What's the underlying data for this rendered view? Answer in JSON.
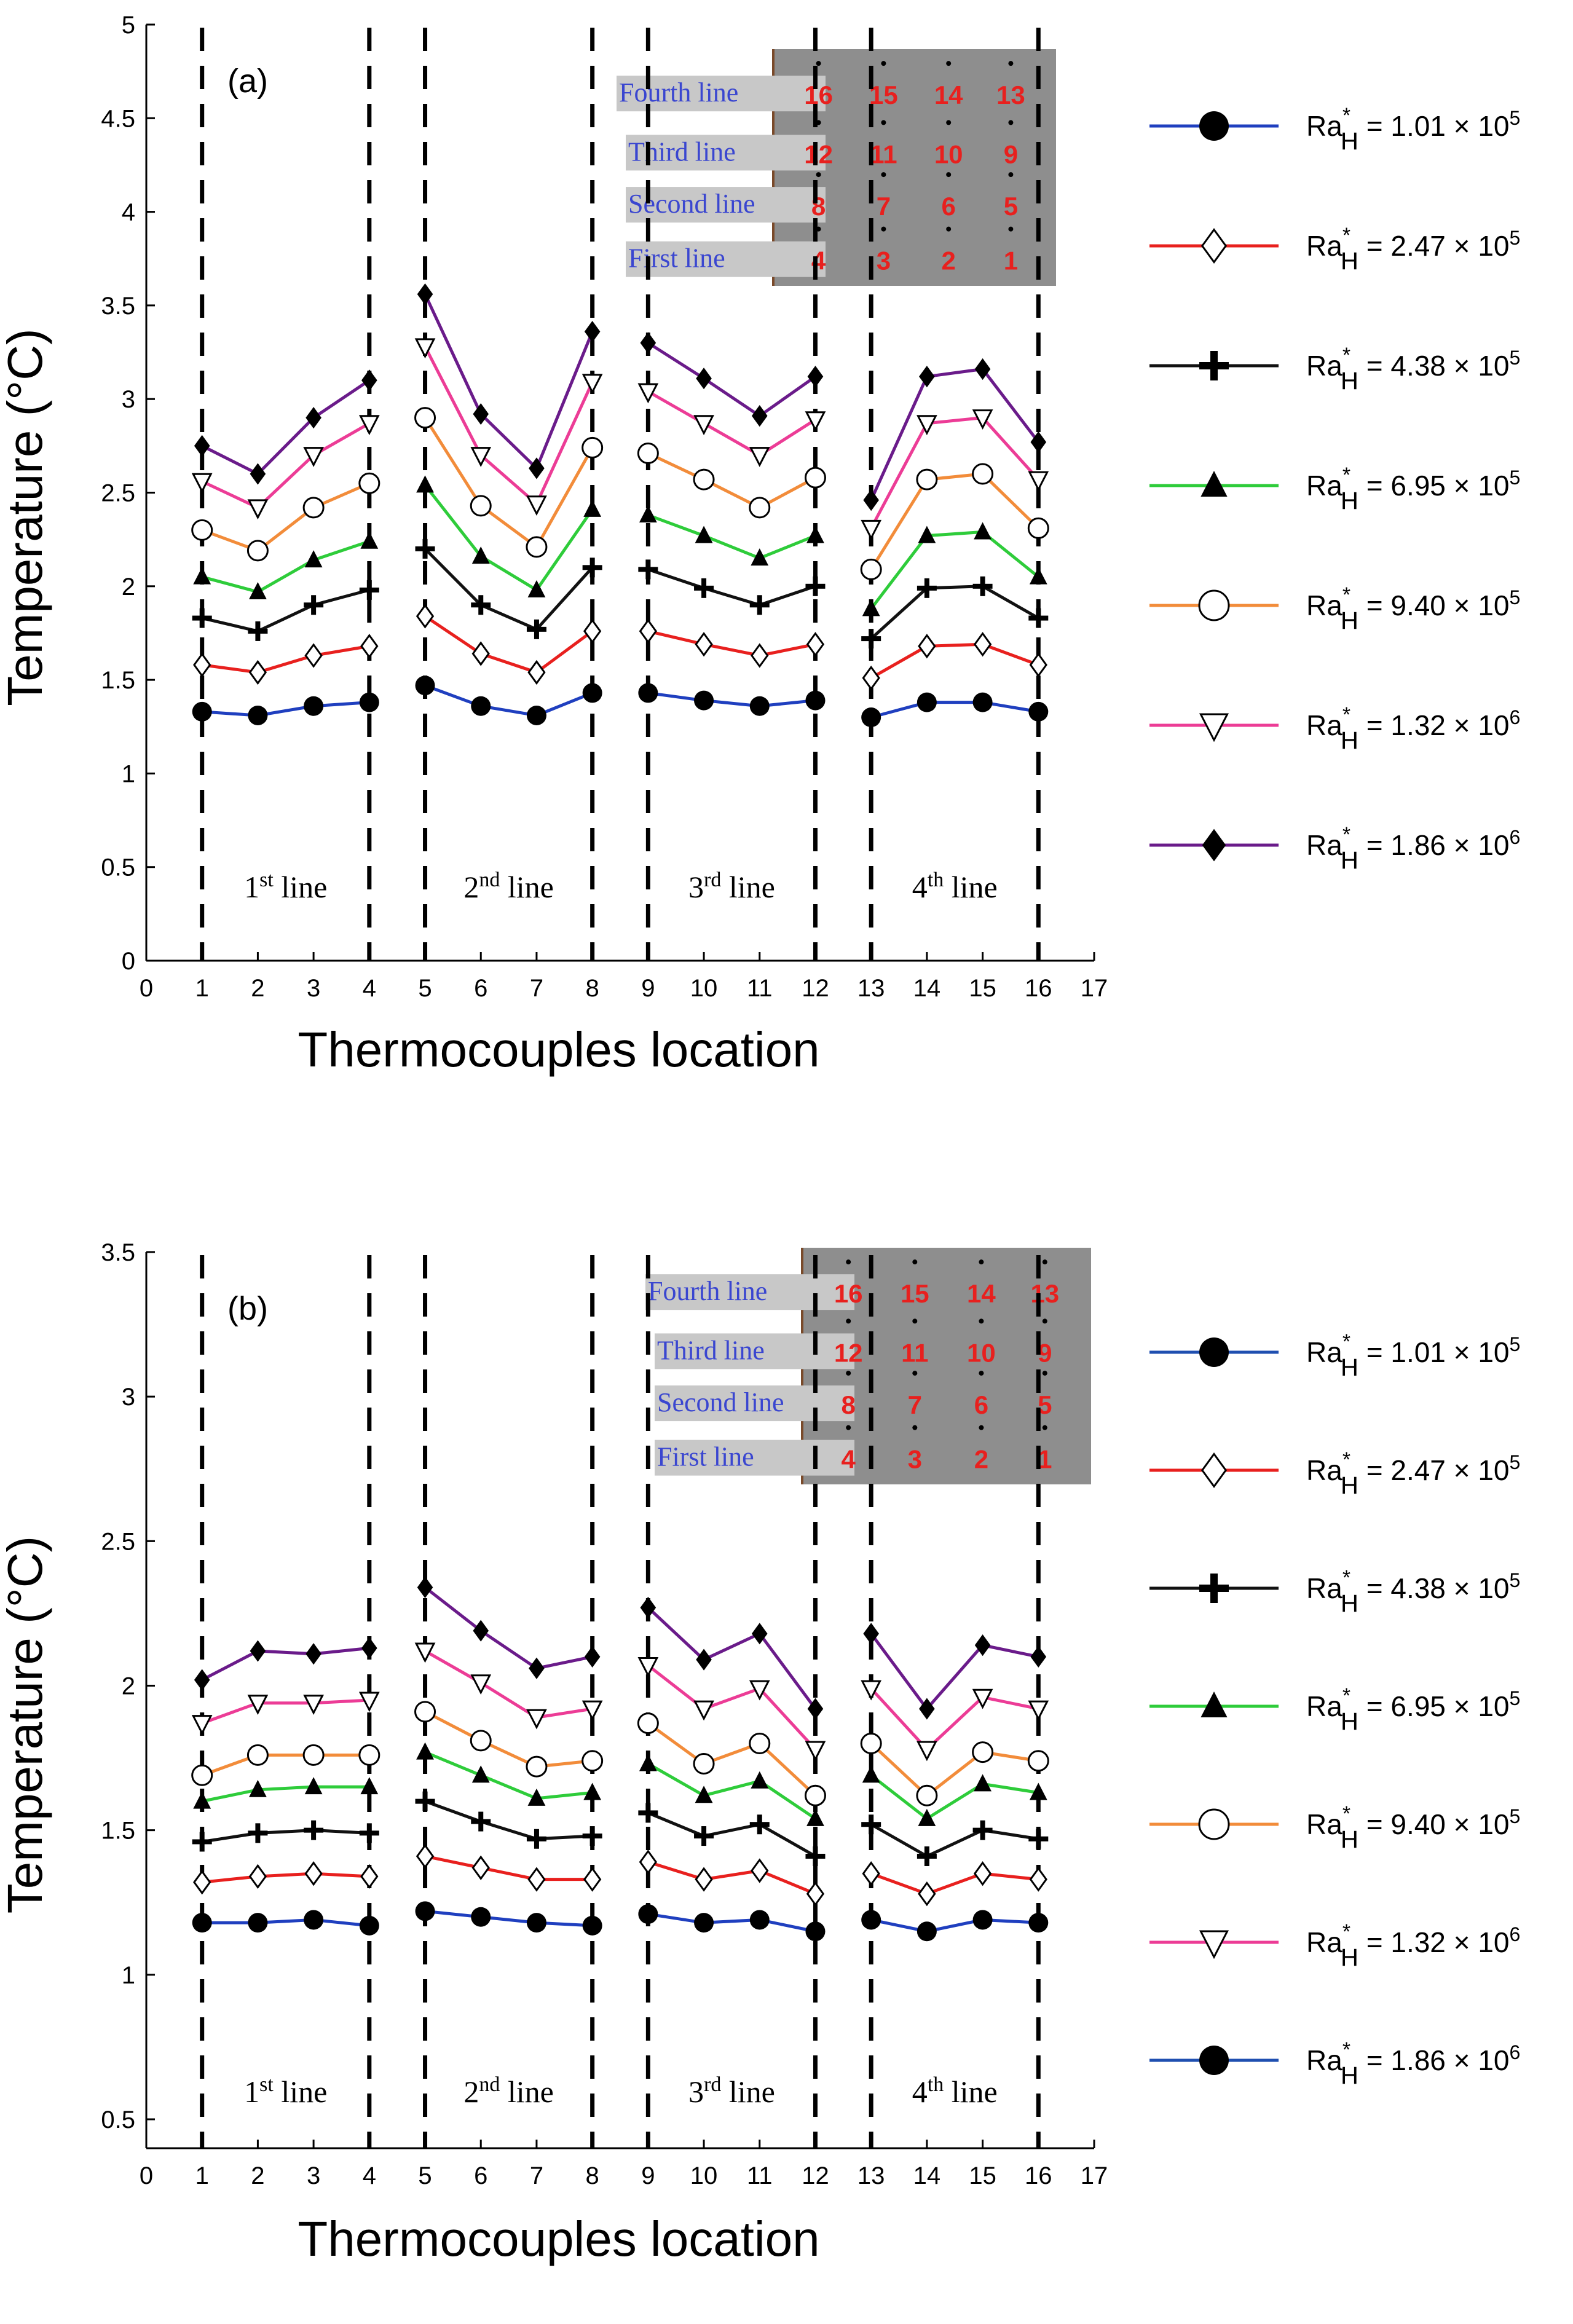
{
  "chart_data": [
    {
      "type": "line",
      "panel_label": "(a)",
      "title": "",
      "xlabel": "Thermocouples location",
      "ylabel": "Temperature (°C)",
      "xlim": [
        0,
        17
      ],
      "ylim": [
        0,
        5
      ],
      "xticks": [
        "0",
        "1",
        "2",
        "3",
        "4",
        "5",
        "6",
        "7",
        "8",
        "9",
        "10",
        "11",
        "12",
        "13",
        "14",
        "15",
        "16",
        "17"
      ],
      "yticks": [
        "0",
        "0.5",
        "1",
        "1.5",
        "2",
        "2.5",
        "3",
        "3.5",
        "4",
        "4.5",
        "5"
      ],
      "groups": [
        [
          1,
          2,
          3,
          4
        ],
        [
          5,
          6,
          7,
          8
        ],
        [
          9,
          10,
          11,
          12
        ],
        [
          13,
          14,
          15,
          16
        ]
      ],
      "divider_x": [
        1,
        4,
        5,
        8,
        9,
        12,
        13,
        16
      ],
      "region_labels": [
        {
          "num": "1",
          "sup": "st",
          "word": "line",
          "x": 2.5
        },
        {
          "num": "2",
          "sup": "nd",
          "word": "line",
          "x": 6.5
        },
        {
          "num": "3",
          "sup": "rd",
          "word": "line",
          "x": 10.5
        },
        {
          "num": "4",
          "sup": "th",
          "word": "line",
          "x": 14.5
        }
      ],
      "inset": {
        "line_labels": [
          "Fourth line",
          "Third line",
          "Second line",
          "First line"
        ],
        "numbers": [
          [
            "16",
            "15",
            "14",
            "13"
          ],
          [
            "12",
            "11",
            "10",
            "9"
          ],
          [
            "8",
            "7",
            "6",
            "5"
          ],
          [
            "4",
            "3",
            "2",
            "1"
          ]
        ]
      },
      "x": [
        1,
        2,
        3,
        4,
        5,
        6,
        7,
        8,
        9,
        10,
        11,
        12,
        13,
        14,
        15,
        16
      ],
      "series": [
        {
          "name": "Ra*H = 1.01 × 10^5",
          "label_base": "Ra",
          "label_sub": "H",
          "label_sup": "*",
          "label_value": "= 1.01 × 10",
          "label_exp": "5",
          "color": "#1f3fbf",
          "marker": "circle",
          "values": [
            1.33,
            1.31,
            1.36,
            1.38,
            1.47,
            1.36,
            1.31,
            1.43,
            1.43,
            1.39,
            1.36,
            1.39,
            1.3,
            1.38,
            1.38,
            1.33
          ]
        },
        {
          "name": "Ra*H = 2.47 × 10^5",
          "label_base": "Ra",
          "label_sub": "H",
          "label_sup": "*",
          "label_value": "= 2.47 × 10",
          "label_exp": "5",
          "color": "#e8201e",
          "marker": "diamond-open",
          "values": [
            1.58,
            1.54,
            1.63,
            1.68,
            1.84,
            1.64,
            1.54,
            1.76,
            1.76,
            1.69,
            1.63,
            1.69,
            1.51,
            1.68,
            1.69,
            1.58
          ]
        },
        {
          "name": "Ra*H = 4.38 × 10^5",
          "label_base": "Ra",
          "label_sub": "H",
          "label_sup": "*",
          "label_value": "= 4.38 × 10",
          "label_exp": "5",
          "color": "#111111",
          "marker": "plus",
          "values": [
            1.83,
            1.76,
            1.9,
            1.98,
            2.2,
            1.9,
            1.77,
            2.1,
            2.09,
            1.99,
            1.9,
            2.0,
            1.72,
            1.99,
            2.0,
            1.83
          ]
        },
        {
          "name": "Ra*H = 6.95 × 10^5",
          "label_base": "Ra",
          "label_sub": "H",
          "label_sup": "*",
          "label_value": "= 6.95 × 10",
          "label_exp": "5",
          "color": "#2ecc3a",
          "marker": "triangle",
          "values": [
            2.05,
            1.97,
            2.14,
            2.24,
            2.54,
            2.16,
            1.98,
            2.41,
            2.38,
            2.27,
            2.15,
            2.27,
            1.88,
            2.27,
            2.29,
            2.05
          ]
        },
        {
          "name": "Ra*H = 9.40 × 10^5",
          "label_base": "Ra",
          "label_sub": "H",
          "label_sup": "*",
          "label_value": "= 9.40 × 10",
          "label_exp": "5",
          "color": "#f28c3a",
          "marker": "circle-open",
          "values": [
            2.3,
            2.19,
            2.42,
            2.55,
            2.9,
            2.43,
            2.21,
            2.74,
            2.71,
            2.57,
            2.42,
            2.58,
            2.09,
            2.57,
            2.6,
            2.31
          ]
        },
        {
          "name": "Ra*H = 1.32 × 10^6",
          "label_base": "Ra",
          "label_sub": "H",
          "label_sup": "*",
          "label_value": "= 1.32 × 10",
          "label_exp": "6",
          "color": "#ec3c96",
          "marker": "triangle-down-open",
          "values": [
            2.56,
            2.42,
            2.7,
            2.87,
            3.28,
            2.7,
            2.44,
            3.09,
            3.04,
            2.87,
            2.7,
            2.89,
            2.31,
            2.87,
            2.9,
            2.57
          ]
        },
        {
          "name": "Ra*H = 1.86 × 10^6",
          "label_base": "Ra",
          "label_sub": "H",
          "label_sup": "*",
          "label_value": "= 1.86 × 10",
          "label_exp": "6",
          "color": "#6a1b8a",
          "marker": "diamond",
          "values": [
            2.75,
            2.6,
            2.9,
            3.1,
            3.56,
            2.92,
            2.63,
            3.36,
            3.3,
            3.11,
            2.91,
            3.12,
            2.46,
            3.12,
            3.16,
            2.77
          ]
        }
      ]
    },
    {
      "type": "line",
      "panel_label": "(b)",
      "title": "",
      "xlabel": "Thermocouples location",
      "ylabel": "Temperature (°C)",
      "xlim": [
        0,
        17
      ],
      "ylim": [
        0.4,
        3.5
      ],
      "xticks": [
        "0",
        "1",
        "2",
        "3",
        "4",
        "5",
        "6",
        "7",
        "8",
        "9",
        "10",
        "11",
        "12",
        "13",
        "14",
        "15",
        "16",
        "17"
      ],
      "yticks": [
        "0.5",
        "1",
        "1.5",
        "2",
        "2.5",
        "3",
        "3.5"
      ],
      "groups": [
        [
          1,
          2,
          3,
          4
        ],
        [
          5,
          6,
          7,
          8
        ],
        [
          9,
          10,
          11,
          12
        ],
        [
          13,
          14,
          15,
          16
        ]
      ],
      "divider_x": [
        1,
        4,
        5,
        8,
        9,
        12,
        13,
        16
      ],
      "region_labels": [
        {
          "num": "1",
          "sup": "st",
          "word": "line",
          "x": 2.5
        },
        {
          "num": "2",
          "sup": "nd",
          "word": "line",
          "x": 6.5
        },
        {
          "num": "3",
          "sup": "rd",
          "word": "line",
          "x": 10.5
        },
        {
          "num": "4",
          "sup": "th",
          "word": "line",
          "x": 14.5
        }
      ],
      "inset": {
        "line_labels": [
          "Fourth line",
          "Third line",
          "Second line",
          "First line"
        ],
        "numbers": [
          [
            "16",
            "15",
            "14",
            "13"
          ],
          [
            "12",
            "11",
            "10",
            "9"
          ],
          [
            "8",
            "7",
            "6",
            "5"
          ],
          [
            "4",
            "3",
            "2",
            "1"
          ]
        ]
      },
      "x": [
        1,
        2,
        3,
        4,
        5,
        6,
        7,
        8,
        9,
        10,
        11,
        12,
        13,
        14,
        15,
        16
      ],
      "series": [
        {
          "name": "Ra*H = 1.01 × 10^5",
          "label_base": "Ra",
          "label_sub": "H",
          "label_sup": "*",
          "label_value": "= 1.01 × 10",
          "label_exp": "5",
          "color": "#1f3fbf",
          "marker": "circle",
          "values": [
            1.18,
            1.18,
            1.19,
            1.17,
            1.22,
            1.2,
            1.18,
            1.17,
            1.21,
            1.18,
            1.19,
            1.15,
            1.19,
            1.15,
            1.19,
            1.18
          ]
        },
        {
          "name": "Ra*H = 2.47 × 10^5",
          "label_base": "Ra",
          "label_sub": "H",
          "label_sup": "*",
          "label_value": "= 2.47 × 10",
          "label_exp": "5",
          "color": "#e8201e",
          "marker": "diamond-open",
          "values": [
            1.32,
            1.34,
            1.35,
            1.34,
            1.41,
            1.37,
            1.33,
            1.33,
            1.39,
            1.33,
            1.36,
            1.28,
            1.35,
            1.28,
            1.35,
            1.33
          ]
        },
        {
          "name": "Ra*H = 4.38 × 10^5",
          "label_base": "Ra",
          "label_sub": "H",
          "label_sup": "*",
          "label_value": "= 4.38 × 10",
          "label_exp": "5",
          "color": "#111111",
          "marker": "plus",
          "values": [
            1.46,
            1.49,
            1.5,
            1.49,
            1.6,
            1.53,
            1.47,
            1.48,
            1.56,
            1.48,
            1.52,
            1.41,
            1.52,
            1.41,
            1.5,
            1.47
          ]
        },
        {
          "name": "Ra*H = 6.95 × 10^5",
          "label_base": "Ra",
          "label_sub": "H",
          "label_sup": "*",
          "label_value": "= 6.95 × 10",
          "label_exp": "5",
          "color": "#2ecc3a",
          "marker": "triangle",
          "values": [
            1.6,
            1.64,
            1.65,
            1.65,
            1.77,
            1.69,
            1.61,
            1.63,
            1.73,
            1.62,
            1.67,
            1.54,
            1.69,
            1.54,
            1.66,
            1.63
          ]
        },
        {
          "name": "Ra*H = 9.40 × 10^5",
          "label_base": "Ra",
          "label_sub": "H",
          "label_sup": "*",
          "label_value": "= 9.40 × 10",
          "label_exp": "5",
          "color": "#f28c3a",
          "marker": "circle-open",
          "values": [
            1.69,
            1.76,
            1.76,
            1.76,
            1.91,
            1.81,
            1.72,
            1.74,
            1.87,
            1.73,
            1.8,
            1.62,
            1.8,
            1.62,
            1.77,
            1.74
          ]
        },
        {
          "name": "Ra*H = 1.32 × 10^6",
          "label_base": "Ra",
          "label_sub": "H",
          "label_sup": "*",
          "label_value": "= 1.32 × 10",
          "label_exp": "6",
          "color": "#ec3c96",
          "marker": "triangle-down-open",
          "values": [
            1.87,
            1.94,
            1.94,
            1.95,
            2.12,
            2.01,
            1.89,
            1.92,
            2.07,
            1.92,
            1.99,
            1.78,
            1.99,
            1.78,
            1.96,
            1.92
          ]
        },
        {
          "name": "Ra*H = 1.86 × 10^6",
          "label_base": "Ra",
          "label_sub": "H",
          "label_sup": "*",
          "label_value": "= 1.86 × 10",
          "label_exp": "6",
          "color": "#6a1b8a",
          "marker": "diamond",
          "values": [
            2.02,
            2.12,
            2.11,
            2.13,
            2.34,
            2.19,
            2.06,
            2.1,
            2.27,
            2.09,
            2.18,
            1.92,
            2.18,
            1.92,
            2.14,
            2.1
          ]
        }
      ],
      "legend_colors": [
        "#1f4fb0",
        "#e8201e",
        "#111111",
        "#2ecc3a",
        "#f28c3a",
        "#ec3c96",
        "#1f4fb0"
      ]
    }
  ]
}
